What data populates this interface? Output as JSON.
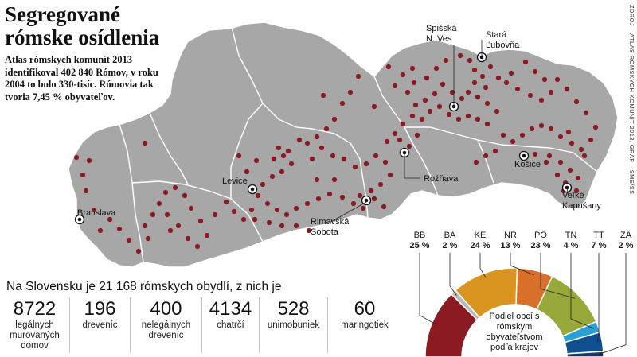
{
  "title_line1": "Segregované",
  "title_line2": "rómske osídlenia",
  "subtitle": "Atlas rómskych komunít 2013 identifikoval 402 840 Rómov, v roku 2004 to bolo 330-tisíc. Rómovia tak tvoria 7,45 % obyvateľov.",
  "credit": "ZDROJ – ATLAS RÓMSKYCH KOMUNÍT 2013, GRAF – SME/ŠS",
  "colors": {
    "land": "#a7a7a7",
    "border": "#ffffff",
    "dot": "#8b1a22",
    "BB": "#8b1a22",
    "BA": "#b9b9b9",
    "KE": "#d9951f",
    "NR": "#d8702a",
    "PO": "#98a83a",
    "TN": "#2a9fd6",
    "TT": "#0f4f8f",
    "ZA": "#1b3b66"
  },
  "cities": [
    {
      "name": "Spišská",
      "name2": "N. Ves",
      "label_key": "spisska"
    },
    {
      "name": "Stará",
      "name2": "Ľubovňa",
      "label_key": "stara"
    },
    {
      "name": "Levice",
      "label_key": "levice"
    },
    {
      "name": "Rožňava",
      "label_key": "roznava"
    },
    {
      "name": "Košice",
      "label_key": "kosice"
    },
    {
      "name": "Bratislava",
      "label_key": "bratislava"
    },
    {
      "name": "Rimavská",
      "name2": "Sobota",
      "label_key": "rimavska"
    },
    {
      "name": "Veľké",
      "name2": "Kapušany",
      "label_key": "velke"
    }
  ],
  "stats_header": "Na Slovensku je 21 168 rómskych obydlí, z nich je",
  "stats": [
    {
      "value": "8722",
      "label": "legálnych murovaných domov"
    },
    {
      "value": "196",
      "label": "dreveníc"
    },
    {
      "value": "400",
      "label": "nelegálnych dreveníc"
    },
    {
      "value": "4134",
      "label": "chatrčí"
    },
    {
      "value": "528",
      "label": "unimobuniek"
    },
    {
      "value": "60",
      "label": "maringotiek"
    }
  ],
  "gauge_title": "Podiel obcí s rómskym obyvateľstvom podľa krajov",
  "chart_data": {
    "type": "pie",
    "title": "Podiel obcí s rómskym obyvateľstvom podľa krajov",
    "categories": [
      "BB",
      "BA",
      "KE",
      "NR",
      "PO",
      "TN",
      "TT",
      "ZA"
    ],
    "values": [
      25,
      2,
      24,
      13,
      23,
      4,
      7,
      2
    ],
    "labels": [
      "25 %",
      "2 %",
      "24 %",
      "13 %",
      "23 %",
      "4 %",
      "7 %",
      "2 %"
    ]
  }
}
